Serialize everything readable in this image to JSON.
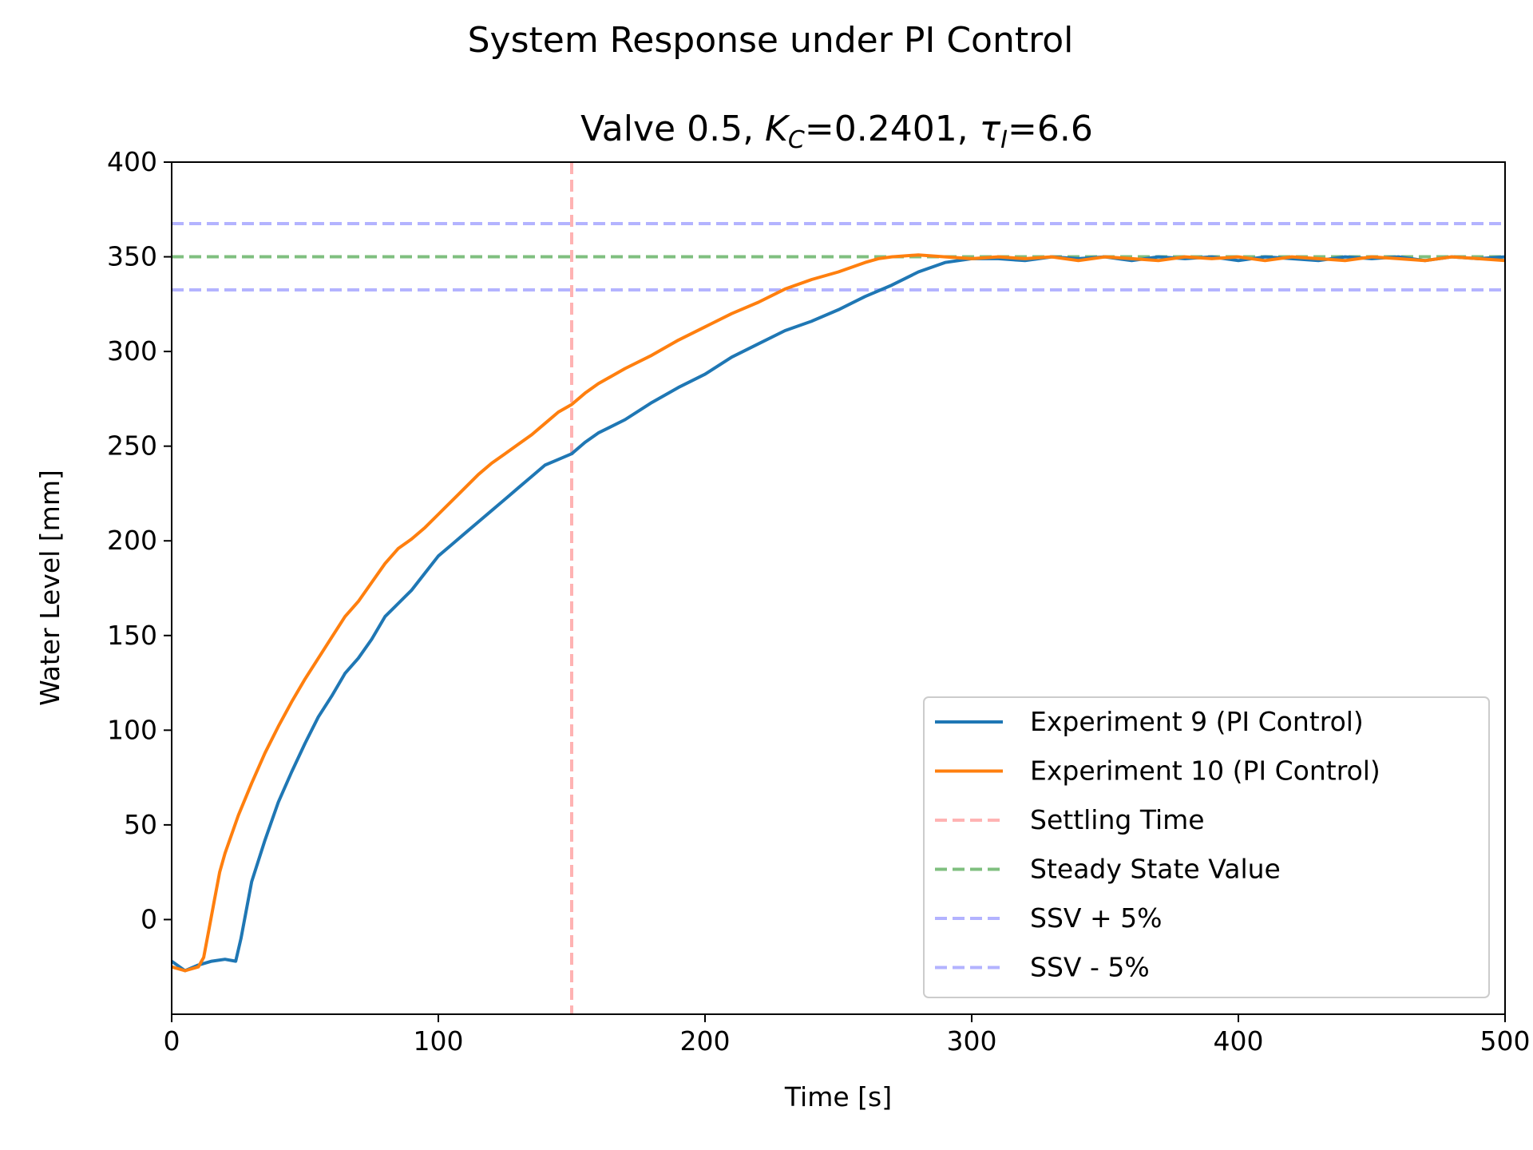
{
  "chart_data": {
    "type": "line",
    "suptitle": "System Response under PI Control",
    "title": {
      "prefix": "Valve 0.5, ",
      "kc_symbol": "K",
      "kc_sub": "C",
      "kc_value": "=0.2401, ",
      "tau_symbol": "τ",
      "tau_sub": "I",
      "tau_value": "=6.6"
    },
    "xlabel": "Time [s]",
    "ylabel": "Water Level [mm]",
    "xlim": [
      0,
      500
    ],
    "ylim": [
      -50,
      400
    ],
    "xticks": [
      0,
      100,
      200,
      300,
      400,
      500
    ],
    "yticks": [
      0,
      50,
      100,
      150,
      200,
      250,
      300,
      350,
      400
    ],
    "grid": false,
    "legend_position": "lower-right",
    "series": [
      {
        "name": "Experiment 9 (PI Control)",
        "color": "#1f77b4",
        "x": [
          0,
          5,
          10,
          15,
          20,
          24,
          26,
          28,
          30,
          35,
          40,
          45,
          50,
          55,
          60,
          65,
          70,
          75,
          80,
          85,
          90,
          95,
          100,
          105,
          110,
          115,
          120,
          125,
          130,
          135,
          140,
          145,
          150,
          155,
          160,
          170,
          180,
          190,
          200,
          210,
          220,
          230,
          240,
          250,
          260,
          270,
          280,
          290,
          300,
          310,
          320,
          330,
          340,
          350,
          360,
          370,
          380,
          390,
          400,
          410,
          420,
          430,
          440,
          450,
          460,
          470,
          480,
          490,
          500
        ],
        "y": [
          -22,
          -27,
          -24,
          -22,
          -21,
          -22,
          -10,
          5,
          20,
          42,
          62,
          78,
          93,
          107,
          118,
          130,
          138,
          148,
          160,
          167,
          174,
          183,
          192,
          198,
          204,
          210,
          216,
          222,
          228,
          234,
          240,
          243,
          246,
          252,
          257,
          264,
          273,
          281,
          288,
          297,
          304,
          311,
          316,
          322,
          329,
          335,
          342,
          347,
          349,
          349,
          348,
          350,
          349,
          350,
          348,
          350,
          349,
          350,
          348,
          350,
          349,
          348,
          350,
          349,
          350,
          348,
          350,
          349,
          350
        ]
      },
      {
        "name": "Experiment 10 (PI Control)",
        "color": "#ff7f0e",
        "x": [
          0,
          5,
          10,
          12,
          14,
          16,
          18,
          20,
          25,
          30,
          35,
          40,
          45,
          50,
          55,
          60,
          65,
          70,
          75,
          80,
          85,
          90,
          95,
          100,
          105,
          110,
          115,
          120,
          125,
          130,
          135,
          140,
          145,
          150,
          155,
          160,
          170,
          180,
          190,
          200,
          210,
          220,
          230,
          240,
          250,
          260,
          265,
          270,
          280,
          290,
          300,
          310,
          320,
          330,
          340,
          350,
          360,
          370,
          380,
          390,
          400,
          410,
          420,
          430,
          440,
          450,
          460,
          470,
          480,
          490,
          500
        ],
        "y": [
          -25,
          -27,
          -25,
          -20,
          -5,
          10,
          25,
          35,
          55,
          72,
          88,
          102,
          115,
          127,
          138,
          149,
          160,
          168,
          178,
          188,
          196,
          201,
          207,
          214,
          221,
          228,
          235,
          241,
          246,
          251,
          256,
          262,
          268,
          272,
          278,
          283,
          291,
          298,
          306,
          313,
          320,
          326,
          333,
          338,
          342,
          347,
          349,
          350,
          351,
          350,
          349,
          350,
          349,
          350,
          348,
          350,
          349,
          348,
          350,
          349,
          350,
          348,
          350,
          349,
          348,
          350,
          349,
          348,
          350,
          349,
          348
        ]
      }
    ],
    "reference_lines": [
      {
        "name": "Settling Time",
        "orientation": "vertical",
        "value": 150,
        "color": "#ffb3b3"
      },
      {
        "name": "Steady State Value",
        "orientation": "horizontal",
        "value": 350,
        "color": "#7fbf7f"
      },
      {
        "name": "SSV + 5%",
        "orientation": "horizontal",
        "value": 367.5,
        "color": "#b3b3ff"
      },
      {
        "name": "SSV - 5%",
        "orientation": "horizontal",
        "value": 332.5,
        "color": "#b3b3ff"
      }
    ]
  }
}
